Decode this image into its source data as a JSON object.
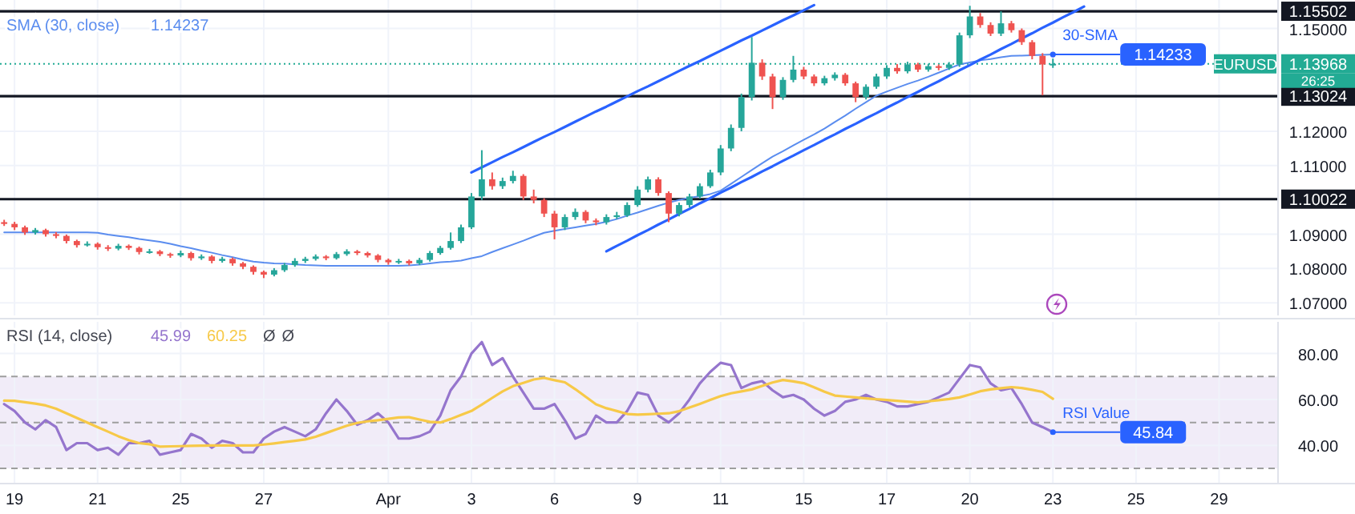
{
  "chart_data": [
    {
      "type": "candlestick",
      "grid": true,
      "tick_labels": "y",
      "categories": [
        null,
        null,
        null,
        null,
        null,
        null,
        null,
        null,
        null,
        null,
        null,
        null,
        null,
        null,
        null,
        null,
        null,
        null,
        null,
        null,
        null,
        null,
        null,
        null,
        null,
        null,
        null,
        null,
        null,
        null,
        null,
        null,
        null,
        null,
        null,
        null,
        null,
        null,
        null,
        null,
        null,
        null,
        null,
        null,
        null,
        null,
        null,
        null,
        null,
        null,
        null,
        null,
        null,
        null,
        null,
        null,
        null,
        null,
        null,
        null,
        null,
        null,
        null,
        null,
        null,
        null,
        null,
        null,
        null,
        null,
        null,
        null,
        null,
        null,
        null,
        null,
        null,
        null,
        null,
        null,
        null,
        null,
        null,
        null,
        null,
        null,
        null,
        null,
        null,
        null,
        null,
        null,
        null,
        null,
        null,
        null,
        null,
        null,
        null,
        null,
        null,
        null,
        null,
        null,
        null,
        null,
        null,
        null,
        null,
        null,
        null,
        null,
        null,
        null,
        null,
        null,
        null,
        null,
        null,
        null,
        null,
        null,
        null
      ],
      "ohlc": [
        [
          1.0935,
          1.0942,
          1.0924,
          1.093
        ],
        [
          1.093,
          1.0936,
          1.0912,
          1.092
        ],
        [
          1.092,
          1.0925,
          1.0898,
          1.0905
        ],
        [
          1.0905,
          1.0918,
          1.0899,
          1.0912
        ],
        [
          1.0912,
          1.0916,
          1.0893,
          1.09
        ],
        [
          1.09,
          1.0906,
          1.0888,
          1.0895
        ],
        [
          1.0895,
          1.0899,
          1.0873,
          1.088
        ],
        [
          1.088,
          1.0884,
          1.0861,
          1.0868
        ],
        [
          1.0868,
          1.0879,
          1.0864,
          1.0872
        ],
        [
          1.0872,
          1.0876,
          1.0855,
          1.0862
        ],
        [
          1.0862,
          1.0868,
          1.0851,
          1.0858
        ],
        [
          1.0858,
          1.0872,
          1.0853,
          1.0866
        ],
        [
          1.0866,
          1.087,
          1.0854,
          1.086
        ],
        [
          1.086,
          1.0864,
          1.0841,
          1.0848
        ],
        [
          1.0848,
          1.0857,
          1.0843,
          1.085
        ],
        [
          1.085,
          1.0854,
          1.0836,
          1.0842
        ],
        [
          1.0842,
          1.0846,
          1.0831,
          1.0838
        ],
        [
          1.0838,
          1.0852,
          1.0833,
          1.0845
        ],
        [
          1.0845,
          1.0849,
          1.0823,
          1.083
        ],
        [
          1.083,
          1.0841,
          1.0825,
          1.0835
        ],
        [
          1.0835,
          1.0839,
          1.0815,
          1.0822
        ],
        [
          1.0822,
          1.0834,
          1.0817,
          1.0828
        ],
        [
          1.0828,
          1.0832,
          1.0808,
          1.0815
        ],
        [
          1.0815,
          1.0819,
          1.0798,
          1.0805
        ],
        [
          1.0805,
          1.0809,
          1.0782,
          1.079
        ],
        [
          1.079,
          1.0794,
          1.0772,
          1.0782
        ],
        [
          1.0782,
          1.0801,
          1.0777,
          1.0795
        ],
        [
          1.0795,
          1.0816,
          1.079,
          1.081
        ],
        [
          1.081,
          1.083,
          1.0805,
          1.0822
        ],
        [
          1.0822,
          1.0834,
          1.0816,
          1.0828
        ],
        [
          1.0828,
          1.0841,
          1.0823,
          1.0835
        ],
        [
          1.0835,
          1.0839,
          1.0824,
          1.083
        ],
        [
          1.083,
          1.0848,
          1.0826,
          1.0842
        ],
        [
          1.0842,
          1.0856,
          1.0837,
          1.085
        ],
        [
          1.085,
          1.0854,
          1.0839,
          1.0845
        ],
        [
          1.0845,
          1.0849,
          1.0832,
          1.0838
        ],
        [
          1.0838,
          1.0842,
          1.0818,
          1.0825
        ],
        [
          1.0825,
          1.0829,
          1.0811,
          1.0818
        ],
        [
          1.0818,
          1.0828,
          1.0813,
          1.0822
        ],
        [
          1.0822,
          1.0826,
          1.0809,
          1.0815
        ],
        [
          1.0815,
          1.0831,
          1.081,
          1.0825
        ],
        [
          1.0825,
          1.0851,
          1.082,
          1.0845
        ],
        [
          1.0845,
          1.0866,
          1.084,
          1.086
        ],
        [
          1.086,
          1.0905,
          1.0855,
          1.088
        ],
        [
          1.088,
          1.0928,
          1.0874,
          1.092
        ],
        [
          1.092,
          1.102,
          1.0915,
          1.101
        ],
        [
          1.101,
          1.1145,
          1.1,
          1.106
        ],
        [
          1.106,
          1.108,
          1.103,
          1.104
        ],
        [
          1.104,
          1.1065,
          1.1032,
          1.1055
        ],
        [
          1.1055,
          1.1085,
          1.1048,
          1.107
        ],
        [
          1.107,
          1.1075,
          1.1,
          1.101
        ],
        [
          1.101,
          1.103,
          1.099,
          1.1
        ],
        [
          1.1,
          1.1005,
          1.095,
          1.096
        ],
        [
          1.096,
          1.0968,
          1.0885,
          1.092
        ],
        [
          1.092,
          1.0958,
          1.0912,
          1.095
        ],
        [
          1.095,
          1.0975,
          1.0942,
          1.0965
        ],
        [
          1.0965,
          1.097,
          1.0932,
          1.094
        ],
        [
          1.094,
          1.0946,
          1.0926,
          1.0935
        ],
        [
          1.0935,
          1.0958,
          1.0928,
          1.095
        ],
        [
          1.095,
          1.0965,
          1.0944,
          1.0955
        ],
        [
          1.0955,
          1.0993,
          1.095,
          1.0985
        ],
        [
          1.0985,
          1.104,
          1.098,
          1.103
        ],
        [
          1.103,
          1.1068,
          1.1022,
          1.106
        ],
        [
          1.106,
          1.1066,
          1.1012,
          1.102
        ],
        [
          1.102,
          1.1025,
          1.0935,
          1.096
        ],
        [
          1.096,
          1.0992,
          1.0952,
          1.0985
        ],
        [
          1.0985,
          1.1018,
          1.0978,
          1.101
        ],
        [
          1.101,
          1.1048,
          1.1004,
          1.104
        ],
        [
          1.104,
          1.1088,
          1.1035,
          1.108
        ],
        [
          1.108,
          1.116,
          1.1072,
          1.115
        ],
        [
          1.115,
          1.122,
          1.1142,
          1.121
        ],
        [
          1.121,
          1.131,
          1.12,
          1.13
        ],
        [
          1.13,
          1.1475,
          1.129,
          1.14
        ],
        [
          1.14,
          1.141,
          1.135,
          1.136
        ],
        [
          1.136,
          1.1368,
          1.1265,
          1.13
        ],
        [
          1.13,
          1.1358,
          1.1292,
          1.135
        ],
        [
          1.135,
          1.142,
          1.1343,
          1.138
        ],
        [
          1.138,
          1.1388,
          1.1352,
          1.136
        ],
        [
          1.136,
          1.1366,
          1.1332,
          1.134
        ],
        [
          1.134,
          1.1362,
          1.1334,
          1.1355
        ],
        [
          1.1355,
          1.1372,
          1.1348,
          1.1365
        ],
        [
          1.1365,
          1.137,
          1.1333,
          1.134
        ],
        [
          1.134,
          1.1345,
          1.1285,
          1.13
        ],
        [
          1.13,
          1.1337,
          1.1293,
          1.133
        ],
        [
          1.133,
          1.1368,
          1.1324,
          1.136
        ],
        [
          1.136,
          1.1393,
          1.1353,
          1.1385
        ],
        [
          1.1385,
          1.1396,
          1.1368,
          1.1375
        ],
        [
          1.1375,
          1.1403,
          1.1369,
          1.1395
        ],
        [
          1.1395,
          1.14,
          1.1373,
          1.138
        ],
        [
          1.138,
          1.1397,
          1.1374,
          1.139
        ],
        [
          1.139,
          1.1395,
          1.1378,
          1.1385
        ],
        [
          1.1385,
          1.1402,
          1.1379,
          1.1395
        ],
        [
          1.1395,
          1.1488,
          1.1388,
          1.148
        ],
        [
          1.148,
          1.1566,
          1.1472,
          1.1535
        ],
        [
          1.1535,
          1.1545,
          1.1502,
          1.151
        ],
        [
          1.151,
          1.1518,
          1.1478,
          1.1485
        ],
        [
          1.1485,
          1.155,
          1.1478,
          1.1515
        ],
        [
          1.1515,
          1.1522,
          1.1488,
          1.1495
        ],
        [
          1.1495,
          1.15,
          1.1452,
          1.146
        ],
        [
          1.146,
          1.1466,
          1.141,
          1.142
        ],
        [
          1.142,
          1.1428,
          1.1305,
          1.1395
        ],
        [
          1.1395,
          1.1412,
          1.1385,
          1.13968
        ],
        null,
        null,
        null,
        null,
        null,
        null,
        null,
        null,
        null,
        null,
        null,
        null,
        null,
        null,
        null,
        null,
        null,
        null,
        null,
        null,
        null
      ],
      "series": [
        {
          "name": "SMA (30, close)",
          "type": "line",
          "color": "#5b8def",
          "values": [
            1.0905,
            1.0905,
            1.0905,
            1.0905,
            1.0905,
            1.0905,
            1.0905,
            1.0905,
            1.0905,
            1.0904,
            1.0899,
            1.0895,
            1.0891,
            1.0886,
            1.0882,
            1.0878,
            1.0872,
            1.0865,
            1.0859,
            1.0852,
            1.0846,
            1.0839,
            1.0833,
            1.0826,
            1.082,
            1.0817,
            1.0815,
            1.0814,
            1.0812,
            1.081,
            1.0809,
            1.0808,
            1.0808,
            1.0808,
            1.0808,
            1.0808,
            1.0808,
            1.0808,
            1.0808,
            1.0809,
            1.0811,
            1.0815,
            1.0818,
            1.082,
            1.0823,
            1.083,
            1.0836,
            1.0848,
            1.0859,
            1.087,
            1.0881,
            1.0893,
            1.0904,
            1.091,
            1.0915,
            1.092,
            1.0925,
            1.093,
            1.0936,
            1.0944,
            1.0954,
            1.0963,
            1.0973,
            1.0983,
            1.0992,
            1.1,
            1.1006,
            1.1011,
            1.1017,
            1.1027,
            1.1047,
            1.1067,
            1.1087,
            1.1107,
            1.1126,
            1.1142,
            1.1159,
            1.1175,
            1.1191,
            1.1208,
            1.1227,
            1.1246,
            1.1266,
            1.1285,
            1.1304,
            1.1316,
            1.1327,
            1.1338,
            1.1348,
            1.1359,
            1.1371,
            1.1383,
            1.1395,
            1.1401,
            1.1407,
            1.1411,
            1.1416,
            1.142,
            1.1421,
            1.1422,
            1.1423,
            1.1424,
            null,
            null,
            null,
            null,
            null,
            null,
            null,
            null,
            null,
            null,
            null,
            null,
            null,
            null,
            null,
            null,
            null,
            null,
            null,
            null,
            null
          ]
        },
        {
          "type": "line",
          "color": "#2962ff",
          "values": [
            null,
            null,
            null,
            null,
            null,
            null,
            null,
            null,
            null,
            null,
            null,
            null,
            null,
            null,
            null,
            null,
            null,
            null,
            null,
            null,
            null,
            null,
            null,
            null,
            null,
            null,
            null,
            null,
            null,
            null,
            null,
            null,
            null,
            null,
            null,
            null,
            null,
            null,
            null,
            null,
            null,
            null,
            null,
            null,
            null,
            1.108,
            1.1095,
            1.111,
            1.1125,
            1.1139,
            1.1154,
            1.1169,
            1.1184,
            1.1198,
            1.1213,
            1.1228,
            1.1243,
            1.1258,
            1.1272,
            1.1287,
            1.1302,
            1.1317,
            1.1331,
            1.1346,
            1.1361,
            1.1376,
            1.1391,
            1.1405,
            1.142,
            1.1435,
            1.145,
            1.1465,
            1.1479,
            1.1494,
            1.1509,
            1.1524,
            1.1538,
            1.1553,
            1.1568,
            null,
            null,
            null,
            null,
            null,
            null,
            null,
            null,
            null,
            null,
            null,
            null,
            null,
            null,
            null,
            null,
            null,
            null,
            null,
            null,
            null,
            null,
            null,
            null,
            null,
            null,
            null,
            null,
            null,
            null,
            null,
            null,
            null,
            null,
            null,
            null,
            null,
            null,
            null,
            null,
            null,
            null,
            null,
            null
          ]
        },
        {
          "type": "line",
          "color": "#2962ff",
          "values": [
            null,
            null,
            null,
            null,
            null,
            null,
            null,
            null,
            null,
            null,
            null,
            null,
            null,
            null,
            null,
            null,
            null,
            null,
            null,
            null,
            null,
            null,
            null,
            null,
            null,
            null,
            null,
            null,
            null,
            null,
            null,
            null,
            null,
            null,
            null,
            null,
            null,
            null,
            null,
            null,
            null,
            null,
            null,
            null,
            null,
            null,
            null,
            null,
            null,
            null,
            null,
            null,
            null,
            null,
            null,
            null,
            null,
            null,
            1.085,
            1.0866,
            1.0881,
            1.0897,
            1.0912,
            1.0928,
            1.0943,
            1.0959,
            1.0974,
            1.099,
            1.1005,
            1.1021,
            1.1036,
            1.1052,
            1.1067,
            1.1083,
            1.1098,
            1.1114,
            1.1129,
            1.1145,
            1.116,
            1.1176,
            1.1191,
            1.1207,
            1.1222,
            1.1238,
            1.1253,
            1.1269,
            1.1284,
            1.13,
            1.1315,
            1.1331,
            1.1346,
            1.1362,
            1.1378,
            1.1393,
            1.1409,
            1.1424,
            1.144,
            1.1455,
            1.1471,
            1.1486,
            1.1502,
            1.1517,
            1.1533,
            1.1548,
            1.1564,
            null,
            null,
            null,
            null,
            null,
            null,
            null,
            null,
            null,
            null,
            null,
            null,
            null,
            null,
            null,
            null,
            null,
            null
          ]
        }
      ],
      "ylim": [
        1.0663,
        1.1583
      ],
      "yticks": [
        {
          "value": 1.15,
          "label": "1.15000"
        },
        {
          "value": 1.12,
          "label": "1.12000"
        },
        {
          "value": 1.11,
          "label": "1.11000"
        },
        {
          "value": 1.09,
          "label": "1.09000"
        },
        {
          "value": 1.08,
          "label": "1.08000"
        },
        {
          "value": 1.07,
          "label": "1.07000"
        }
      ],
      "ref_lines": [
        {
          "axis": "y",
          "value": 1.15502,
          "label": "1.15502",
          "color": "#131722"
        },
        {
          "axis": "y",
          "value": 1.13024,
          "label": "1.13024",
          "color": "#131722"
        },
        {
          "axis": "y",
          "value": 1.10022,
          "label": "1.10022",
          "color": "#131722"
        },
        {
          "axis": "y",
          "value": 1.13968,
          "label": "1.13968",
          "color": "#22ab94",
          "line_style": "dotted"
        }
      ],
      "annotations": [
        "1.14237",
        "30-SMA",
        "1.14233",
        {
          "text": "EURUSD",
          "y": 1.13968
        },
        "26:25"
      ]
    },
    {
      "type": "line",
      "grid": true,
      "legend_title": "RSI (14, close)",
      "categories": [
        null,
        "19",
        null,
        null,
        null,
        null,
        null,
        null,
        null,
        "21",
        null,
        null,
        null,
        null,
        null,
        null,
        null,
        "25",
        null,
        null,
        null,
        null,
        null,
        null,
        null,
        "27",
        null,
        null,
        null,
        null,
        null,
        null,
        null,
        null,
        null,
        null,
        null,
        "Apr",
        null,
        null,
        null,
        null,
        null,
        null,
        null,
        "3",
        null,
        null,
        null,
        null,
        null,
        null,
        null,
        "6",
        null,
        null,
        null,
        null,
        null,
        null,
        null,
        "9",
        null,
        null,
        null,
        null,
        null,
        null,
        null,
        "11",
        null,
        null,
        null,
        null,
        null,
        null,
        null,
        "15",
        null,
        null,
        null,
        null,
        null,
        null,
        null,
        "17",
        null,
        null,
        null,
        null,
        null,
        null,
        null,
        "20",
        null,
        null,
        null,
        null,
        null,
        null,
        null,
        "23",
        null,
        null,
        null,
        null,
        null,
        null,
        null,
        "25",
        null,
        null,
        null,
        null,
        null,
        null,
        null,
        "29",
        null,
        null,
        null,
        null,
        null
      ],
      "series": [
        {
          "color": "#9575cd",
          "values": [
            58,
            55,
            50,
            47,
            51,
            48,
            38,
            41,
            41,
            38,
            39,
            36,
            41,
            41,
            42,
            36,
            37,
            38,
            45,
            43,
            39,
            42,
            41,
            37,
            37,
            43,
            46,
            48,
            46,
            44,
            47,
            54,
            60,
            55,
            49,
            51,
            54,
            50,
            43,
            43,
            44,
            46,
            53,
            64,
            70,
            80,
            85,
            75,
            78,
            70,
            63,
            56,
            56,
            58,
            51,
            43,
            45,
            53,
            50,
            50,
            55,
            63,
            62,
            53,
            50,
            54,
            60,
            67,
            72,
            76,
            75,
            65,
            67,
            68,
            64,
            61,
            62,
            60,
            56,
            53,
            55,
            59,
            60,
            62,
            60,
            59,
            57,
            57,
            58,
            59,
            61,
            63,
            69,
            75,
            74,
            67,
            64,
            65,
            58,
            50,
            48,
            45.8,
            null,
            null,
            null,
            null,
            null,
            null,
            null,
            null,
            null,
            null,
            null,
            null,
            null,
            null,
            null,
            null,
            null,
            null,
            null,
            null,
            null
          ]
        },
        {
          "color": "#f7c948",
          "values": [
            59.5,
            59.4,
            58.8,
            58.2,
            57.4,
            56,
            54,
            52,
            50,
            48,
            46,
            44,
            42.3,
            41,
            40.5,
            39.5,
            39.6,
            39.7,
            39.8,
            39.9,
            40,
            40,
            40,
            40,
            40,
            40.4,
            40.9,
            41.5,
            42,
            42.6,
            43.8,
            45.4,
            47,
            48.6,
            49.8,
            50.5,
            51,
            51.6,
            52.2,
            52.3,
            51.3,
            50.3,
            50,
            51.5,
            53.3,
            55,
            57.8,
            60.7,
            63.5,
            65.8,
            67.2,
            68.7,
            69.4,
            68.4,
            67.5,
            64.5,
            61.2,
            57.9,
            56.2,
            55,
            53.7,
            53.4,
            53.6,
            53.8,
            54,
            54.9,
            56.5,
            58.1,
            59.8,
            61.5,
            62.7,
            63.5,
            64.4,
            65.9,
            67.4,
            68.5,
            67.9,
            67.1,
            65.3,
            63.4,
            61.7,
            61.3,
            60.9,
            60.5,
            60.1,
            59.8,
            59.4,
            59.1,
            58.7,
            59.2,
            59.7,
            60.2,
            60.9,
            62.2,
            63.6,
            64.4,
            64.9,
            65.4,
            65,
            64.2,
            63.3,
            60.3,
            null,
            null,
            null,
            null,
            null,
            null,
            null,
            null,
            null,
            null,
            null,
            null,
            null,
            null,
            null,
            null,
            null,
            null,
            null,
            null,
            null
          ]
        }
      ],
      "ylim": [
        23.4,
        93.8
      ],
      "yticks": [
        {
          "value": 40,
          "label": "40.00"
        },
        {
          "value": 60,
          "label": "60.00"
        },
        {
          "value": 80,
          "label": "80.00"
        }
      ],
      "bands": [
        {
          "axis": "y",
          "from": 30,
          "to": 70,
          "color": "#ede7f6"
        }
      ],
      "ref_lines": [
        {
          "axis": "y",
          "value": 70,
          "color": "#9e9e9e",
          "line_style": "dashed"
        },
        {
          "axis": "y",
          "value": 50,
          "color": "#9e9e9e",
          "line_style": "dashed"
        },
        {
          "axis": "y",
          "value": 30,
          "color": "#9e9e9e",
          "line_style": "dashed"
        }
      ],
      "annotations": [
        "45.99",
        "60.25",
        "Ø",
        "Ø",
        "RSI Value",
        "45.84"
      ]
    }
  ]
}
